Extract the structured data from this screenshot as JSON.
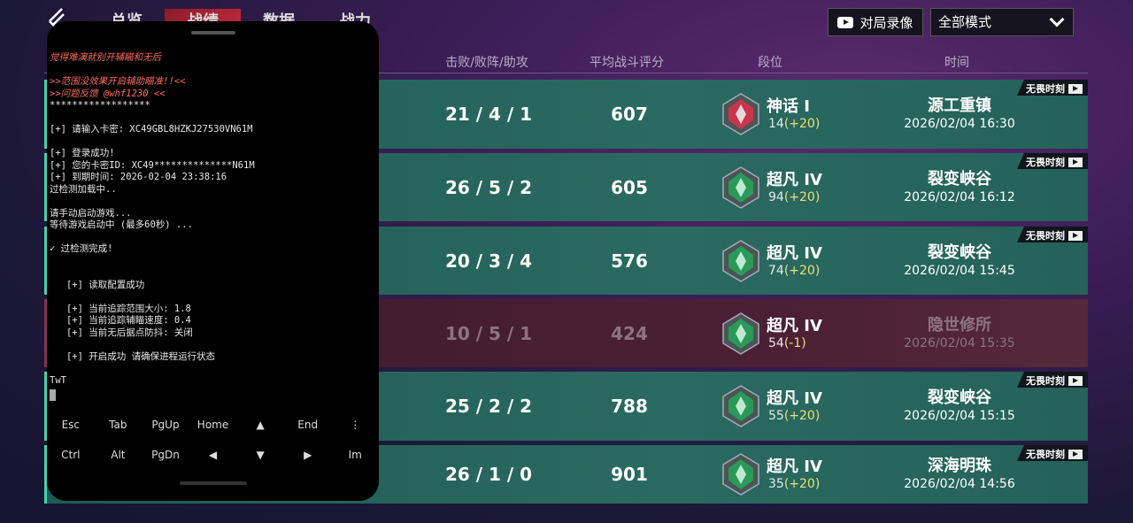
{
  "nav": {
    "tabs": [
      "总览",
      "战绩",
      "数据",
      "战力"
    ],
    "active": 1
  },
  "toolbar": {
    "replay_label": "对局录像",
    "mode_select": "全部模式"
  },
  "columns": {
    "kda": "击败/败阵/助攻",
    "score": "平均战斗评分",
    "rank": "段位",
    "time": "时间"
  },
  "matches": [
    {
      "kda": "21 / 4 / 1",
      "score": "607",
      "rank": "神话 I",
      "points": "14",
      "delta": "(+20)",
      "map": "源工重镇",
      "time": "2026/02/04 16:30",
      "tag": "无畏时刻",
      "result": "win",
      "badge": "mythic"
    },
    {
      "kda": "26 / 5 / 2",
      "score": "605",
      "rank": "超凡 IV",
      "points": "94",
      "delta": "(+20)",
      "map": "裂变峡谷",
      "time": "2026/02/04 16:12",
      "tag": "无畏时刻",
      "result": "win",
      "badge": "ascendant"
    },
    {
      "kda": "20 / 3 / 4",
      "score": "576",
      "rank": "超凡 IV",
      "points": "74",
      "delta": "(+20)",
      "map": "裂变峡谷",
      "time": "2026/02/04 15:45",
      "tag": "无畏时刻",
      "result": "win",
      "badge": "ascendant"
    },
    {
      "kda": "10 / 5 / 1",
      "score": "424",
      "rank": "超凡 IV",
      "points": "54",
      "delta": "(-1)",
      "map": "隐世修所",
      "time": "2026/02/04 15:35",
      "tag": "",
      "result": "loss",
      "badge": "ascendant"
    },
    {
      "kda": "25 / 2 / 2",
      "score": "788",
      "rank": "超凡 IV",
      "points": "55",
      "delta": "(+20)",
      "map": "裂变峡谷",
      "time": "2026/02/04 15:15",
      "tag": "无畏时刻",
      "result": "win",
      "badge": "ascendant"
    },
    {
      "kda": "26 / 1 / 0",
      "score": "901",
      "rank": "超凡 IV",
      "points": "35",
      "delta": "(+20)",
      "map": "深海明珠",
      "time": "2026/02/04 14:56",
      "tag": "无畏时刻",
      "result": "win",
      "badge": "ascendant"
    }
  ],
  "terminal": {
    "lines": [
      {
        "t": "觉得难演就别开辅瞄和无后",
        "c": "red"
      },
      {
        "t": ""
      },
      {
        "t": ">>范围没效果开启辅助瞄准!!<<",
        "c": "red"
      },
      {
        "t": ">>问题反馈 @whf1230 <<",
        "c": "red"
      },
      {
        "t": "******************"
      },
      {
        "t": ""
      },
      {
        "t": "[+] 请输入卡密: XC49GBL8HZKJ27530VN61M"
      },
      {
        "t": ""
      },
      {
        "t": "[+] 登录成功!"
      },
      {
        "t": "[+] 您的卡密ID: XC49**************N61M"
      },
      {
        "t": "[+] 到期时间: 2026-02-04 23:38:16"
      },
      {
        "t": "过检测加载中.."
      },
      {
        "t": ""
      },
      {
        "t": "请手动启动游戏..."
      },
      {
        "t": "等待游戏启动中 (最多60秒) ..."
      },
      {
        "t": ""
      },
      {
        "t": "✓ 过检测完成!"
      },
      {
        "t": ""
      },
      {
        "t": ""
      },
      {
        "t": "   [+] 读取配置成功"
      },
      {
        "t": ""
      },
      {
        "t": "   [+] 当前追踪范围大小: 1.8"
      },
      {
        "t": "   [+] 当前追踪辅瞄速度: 0.4"
      },
      {
        "t": "   [+] 当前无后据点防抖: 关闭"
      },
      {
        "t": ""
      },
      {
        "t": "   [+] 开启成功 请确保进程运行状态"
      },
      {
        "t": ""
      },
      {
        "t": "TwT"
      }
    ],
    "keys_row1": [
      "Esc",
      "Tab",
      "PgUp",
      "Home",
      "▲",
      "End",
      "⋮"
    ],
    "keys_row2": [
      "Ctrl",
      "Alt",
      "PgDn",
      "◀",
      "▼",
      "▶",
      "Im"
    ]
  },
  "colors": {
    "win_row": "#24625a",
    "loss_row": "#4c2034",
    "accent": "#3fd4b0",
    "active_tab": "#c02a3c"
  }
}
